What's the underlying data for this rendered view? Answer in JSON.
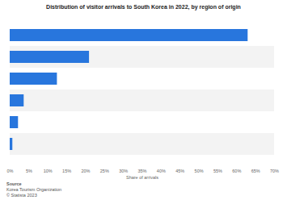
{
  "chart_data": {
    "type": "bar",
    "title": "Distribution of visitor arrivals to South Korea in 2022, by region of origin",
    "orientation": "horizontal",
    "categories": [
      null,
      null,
      null,
      null,
      null,
      null
    ],
    "values": [
      63,
      21,
      12.5,
      3.7,
      2.2,
      0.7
    ],
    "color": "#2876dd",
    "x_label": "Share of arrivals",
    "xlim": [
      0,
      70
    ],
    "xticks": [
      {
        "value": 0,
        "label": "0%"
      },
      {
        "value": 5,
        "label": "5%"
      },
      {
        "value": 10,
        "label": "10%"
      },
      {
        "value": 15,
        "label": "15%"
      },
      {
        "value": 20,
        "label": "20%"
      },
      {
        "value": 25,
        "label": "25%"
      },
      {
        "value": 30,
        "label": "30%"
      },
      {
        "value": 35,
        "label": "35%"
      },
      {
        "value": 40,
        "label": "40%"
      },
      {
        "value": 45,
        "label": "45%"
      },
      {
        "value": 50,
        "label": "50%"
      },
      {
        "value": 55,
        "label": "55%"
      },
      {
        "value": 60,
        "label": "60%"
      },
      {
        "value": 65,
        "label": "65%"
      },
      {
        "value": 70,
        "label": "70%"
      }
    ],
    "source_title": "Source",
    "source": "Korea Tourism Organization",
    "copyright": "© Statista 2023"
  }
}
